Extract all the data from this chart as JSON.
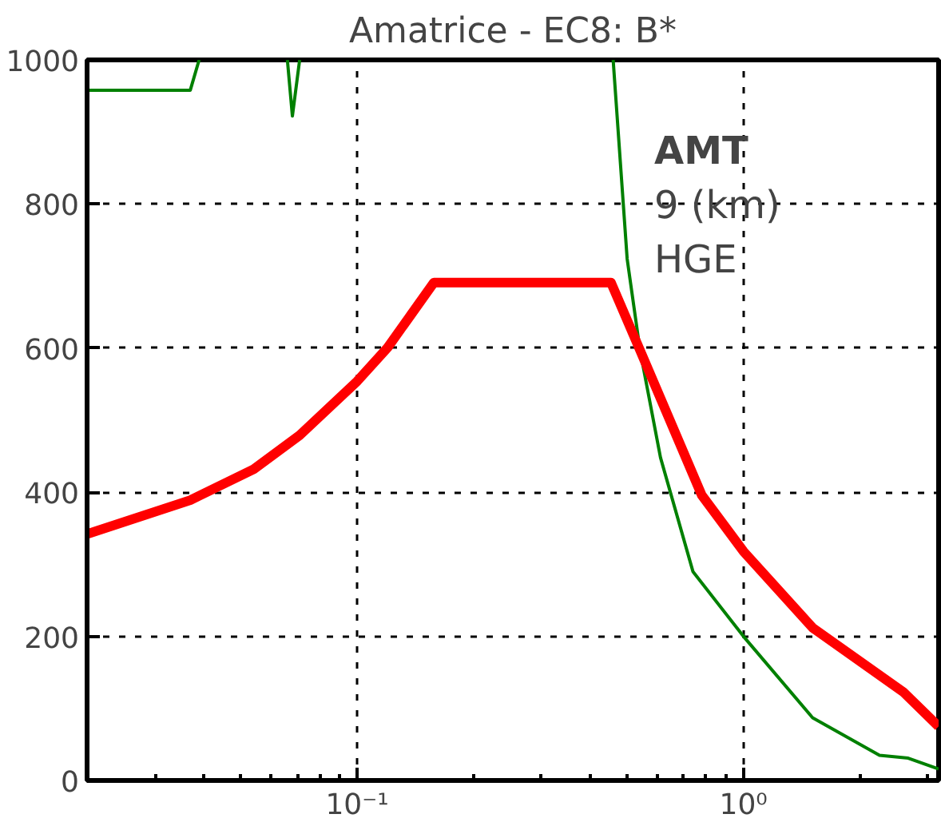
{
  "chart_data": {
    "type": "line",
    "title": "Amatrice - EC8: B*",
    "annotations": [
      "AMT",
      "9 (km)",
      "HGE"
    ],
    "log": "x",
    "grid": true,
    "marker": "none",
    "line_style": "solid",
    "xlim": [
      0.02,
      3.2
    ],
    "xticks": [
      {
        "value": 0.1,
        "label": "10⁻¹"
      },
      {
        "value": 1,
        "label": "10⁰"
      }
    ],
    "ylim": [
      0,
      1000
    ],
    "yticks": [
      0,
      200,
      400,
      600,
      800,
      1000
    ],
    "series": [
      {
        "color": "#008000",
        "x": [
          0.02,
          0.037,
          0.039,
          0.05,
          0.066,
          0.068,
          0.071,
          0.2,
          0.46,
          0.5,
          0.54,
          0.61,
          0.74,
          1,
          1.51,
          2.25,
          2.67,
          3.2
        ],
        "values": [
          958,
          958,
          1000,
          null,
          1000,
          922,
          1000,
          null,
          1000,
          724,
          597,
          448,
          290,
          200,
          87,
          35,
          31,
          16
        ]
      },
      {
        "color": "#ff0000",
        "x": [
          0.02,
          0.037,
          0.054,
          0.071,
          0.1,
          0.12,
          0.158,
          0.454,
          0.54,
          0.78,
          1,
          1.51,
          2.59,
          3.2
        ],
        "values": [
          342,
          389,
          432,
          479,
          554,
          601,
          691,
          691,
          597,
          396,
          318,
          212,
          123,
          75
        ]
      }
    ]
  }
}
